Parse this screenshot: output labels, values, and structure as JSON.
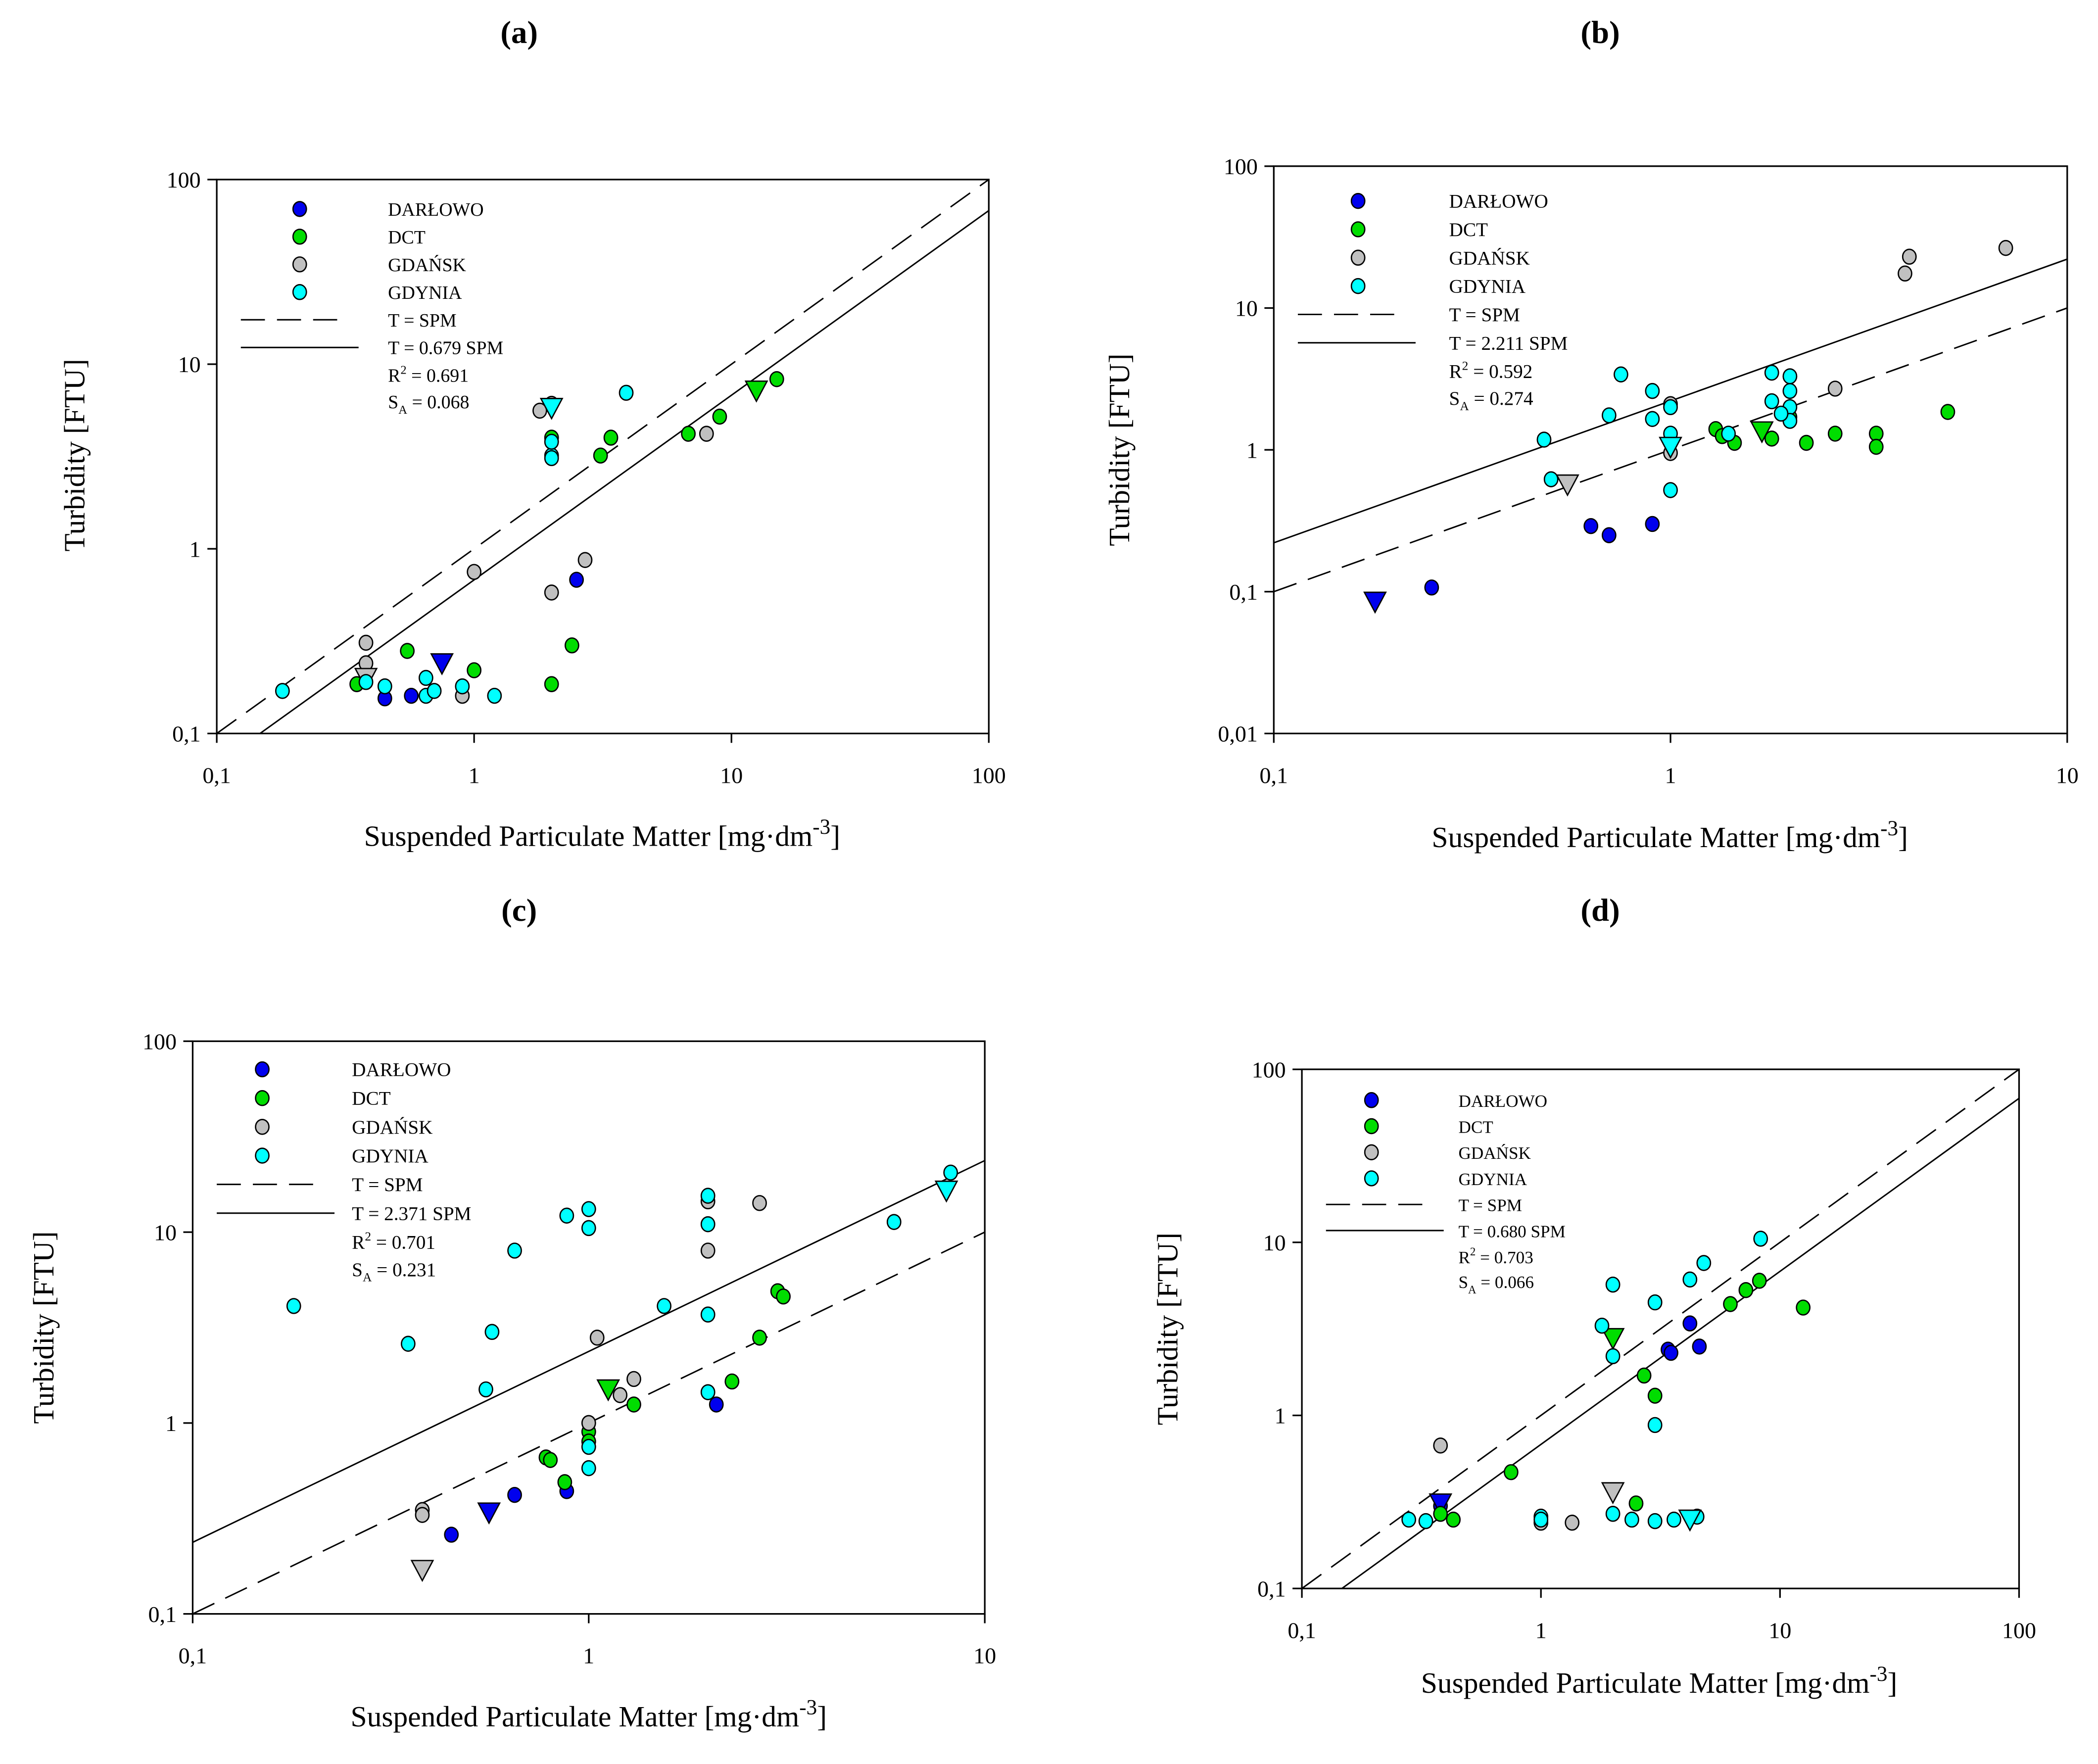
{
  "series_styles": [
    {
      "name": "DARŁOWO",
      "color": "#0000ee"
    },
    {
      "name": "DCT",
      "color": "#00dd00"
    },
    {
      "name": "GDAŃSK",
      "color": "#c0c0c0"
    },
    {
      "name": "GDYNIA",
      "color": "#00ffff"
    }
  ],
  "chart_data": [
    {
      "panel": "(a)",
      "type": "scatter",
      "xlabel": "Suspended Particulate Matter [mg·dm",
      "xlabel_sup": "-3",
      "xlabel_end": "]",
      "ylabel": "Turbidity [FTU]",
      "xscale": "log",
      "yscale": "log",
      "xlim": [
        0.1,
        100
      ],
      "ylim": [
        0.1,
        100
      ],
      "xticks": [
        "0,1",
        "1",
        "10",
        "100"
      ],
      "yticks": [
        "0,1",
        "1",
        "10",
        "100"
      ],
      "legend_position": "top-left",
      "lines": [
        {
          "label": "T = SPM",
          "slope": 1,
          "style": "dashed"
        },
        {
          "label": "T = 0.679 SPM",
          "slope": 0.679,
          "style": "solid"
        }
      ],
      "r2_label": "R",
      "r2_sup": "2",
      "r2_value": " = 0.691",
      "sa_label": "S",
      "sa_sub": "A",
      "sa_value": " = 0.068",
      "series": [
        {
          "name": "DARŁOWO",
          "points": [
            [
              0.45,
              0.155
            ],
            [
              0.57,
              0.16
            ],
            [
              2.5,
              0.68
            ]
          ],
          "mean": [
            0.75,
            0.24
          ]
        },
        {
          "name": "DCT",
          "points": [
            [
              0.35,
              0.185
            ],
            [
              0.55,
              0.28
            ],
            [
              1,
              0.22
            ],
            [
              2,
              0.185
            ],
            [
              2.4,
              0.3
            ],
            [
              3.1,
              3.2
            ],
            [
              3.4,
              4.0
            ],
            [
              6.8,
              4.2
            ],
            [
              9,
              5.2
            ],
            [
              15,
              8.3
            ],
            [
              2,
              4.0
            ]
          ],
          "mean": [
            12.5,
            7.2
          ]
        },
        {
          "name": "GDAŃSK",
          "points": [
            [
              0.38,
              0.31
            ],
            [
              0.38,
              0.24
            ],
            [
              0.9,
              0.16
            ],
            [
              1,
              0.75
            ],
            [
              1.8,
              5.6
            ],
            [
              2,
              6.1
            ],
            [
              2,
              0.58
            ],
            [
              2.7,
              0.87
            ],
            [
              8,
              4.2
            ]
          ],
          "mean": [
            0.38,
            0.2
          ]
        },
        {
          "name": "GDYNIA",
          "points": [
            [
              0.18,
              0.17
            ],
            [
              0.45,
              0.18
            ],
            [
              0.65,
              0.2
            ],
            [
              0.65,
              0.16
            ],
            [
              0.7,
              0.17
            ],
            [
              0.9,
              0.18
            ],
            [
              1.2,
              0.16
            ],
            [
              2,
              3.2
            ],
            [
              2,
              3.8
            ],
            [
              2,
              3.1
            ],
            [
              3.9,
              7.0
            ],
            [
              0.38,
              0.19
            ]
          ],
          "mean": [
            2,
            5.8
          ]
        }
      ]
    },
    {
      "panel": "(b)",
      "type": "scatter",
      "xlabel": "Suspended Particulate Matter [mg·dm",
      "xlabel_sup": "-3",
      "xlabel_end": "]",
      "ylabel": "Turbidity [FTU]",
      "xscale": "log",
      "yscale": "log",
      "xlim": [
        0.1,
        10
      ],
      "ylim": [
        0.01,
        100
      ],
      "xticks": [
        "0,1",
        "1",
        "10"
      ],
      "yticks": [
        "0,01",
        "0,1",
        "1",
        "10",
        "100"
      ],
      "legend_position": "top-left",
      "lines": [
        {
          "label": "T =  SPM",
          "slope": 1,
          "style": "dashed"
        },
        {
          "label": "T = 2.211 SPM",
          "slope": 2.211,
          "style": "solid"
        }
      ],
      "r2_label": "R",
      "r2_sup": "2",
      "r2_value": " = 0.592",
      "sa_label": "S",
      "sa_sub": "A",
      "sa_value": " = 0.274",
      "series": [
        {
          "name": "DARŁOWO",
          "points": [
            [
              0.25,
              0.107
            ],
            [
              0.63,
              0.29
            ],
            [
              0.7,
              0.25
            ],
            [
              0.9,
              0.3
            ]
          ],
          "mean": [
            0.18,
            0.085
          ]
        },
        {
          "name": "DCT",
          "points": [
            [
              1.3,
              1.4
            ],
            [
              1.35,
              1.25
            ],
            [
              1.45,
              1.12
            ],
            [
              1.8,
              1.2
            ],
            [
              2.2,
              1.12
            ],
            [
              2.6,
              1.3
            ],
            [
              3.3,
              1.3
            ],
            [
              3.3,
              1.05
            ],
            [
              5,
              1.85
            ],
            [
              2,
              1.7
            ]
          ],
          "mean": [
            1.7,
            1.35
          ]
        },
        {
          "name": "GDAŃSK",
          "points": [
            [
              1,
              0.95
            ],
            [
              1,
              2.1
            ],
            [
              2.6,
              2.7
            ],
            [
              3.9,
              17.5
            ],
            [
              4,
              23
            ],
            [
              7,
              26.5
            ]
          ],
          "mean": [
            0.55,
            0.57
          ]
        },
        {
          "name": "GDYNIA",
          "points": [
            [
              0.48,
              1.18
            ],
            [
              0.5,
              0.62
            ],
            [
              0.7,
              1.75
            ],
            [
              0.75,
              3.4
            ],
            [
              0.9,
              2.6
            ],
            [
              0.9,
              1.65
            ],
            [
              1,
              2.0
            ],
            [
              1,
              1.3
            ],
            [
              1,
              0.52
            ],
            [
              1.8,
              3.5
            ],
            [
              1.8,
              2.2
            ],
            [
              2,
              3.3
            ],
            [
              2,
              2.6
            ],
            [
              2,
              2.0
            ],
            [
              2,
              1.6
            ],
            [
              1.9,
              1.8
            ],
            [
              1.4,
              1.3
            ]
          ],
          "mean": [
            1,
            1.05
          ]
        }
      ]
    },
    {
      "panel": "(c)",
      "type": "scatter",
      "xlabel": "Suspended Particulate Matter [mg·dm",
      "xlabel_sup": "-3",
      "xlabel_end": "]",
      "ylabel": "Turbidity [FTU]",
      "xscale": "log",
      "yscale": "log",
      "xlim": [
        0.1,
        10
      ],
      "ylim": [
        0.1,
        100
      ],
      "xticks": [
        "0,1",
        "1",
        "10"
      ],
      "yticks": [
        "0,1",
        "1",
        "10",
        "100"
      ],
      "legend_position": "top-left",
      "lines": [
        {
          "label": "T = SPM",
          "slope": 1,
          "style": "dashed"
        },
        {
          "label": "T = 2.371 SPM",
          "slope": 2.371,
          "style": "solid"
        }
      ],
      "r2_label": "R",
      "r2_sup": "2",
      "r2_value": " = 0.701",
      "sa_label": "S",
      "sa_sub": "A",
      "sa_value": " = 0.231",
      "series": [
        {
          "name": "DARŁOWO",
          "points": [
            [
              0.45,
              0.26
            ],
            [
              0.65,
              0.42
            ],
            [
              0.88,
              0.44
            ],
            [
              2.1,
              1.25
            ]
          ],
          "mean": [
            0.56,
            0.34
          ]
        },
        {
          "name": "DCT",
          "points": [
            [
              0.78,
              0.66
            ],
            [
              0.8,
              0.64
            ],
            [
              0.87,
              0.49
            ],
            [
              1,
              0.9
            ],
            [
              1,
              0.8
            ],
            [
              1.3,
              1.25
            ],
            [
              2.3,
              1.65
            ],
            [
              2.7,
              2.8
            ],
            [
              3,
              4.9
            ],
            [
              3.1,
              4.6
            ]
          ],
          "mean": [
            1.12,
            1.5
          ]
        },
        {
          "name": "GDAŃSK",
          "points": [
            [
              0.38,
              0.35
            ],
            [
              0.38,
              0.33
            ],
            [
              1,
              1.0
            ],
            [
              1.05,
              2.8
            ],
            [
              1.2,
              1.4
            ],
            [
              1.3,
              1.7
            ],
            [
              2,
              14.5
            ],
            [
              2,
              8
            ],
            [
              2.7,
              14.2
            ]
          ],
          "mean": [
            0.38,
            0.17
          ]
        },
        {
          "name": "GDYNIA",
          "points": [
            [
              0.18,
              4.1
            ],
            [
              0.35,
              2.6
            ],
            [
              0.55,
              1.5
            ],
            [
              0.57,
              3.0
            ],
            [
              0.65,
              8.0
            ],
            [
              0.88,
              12.2
            ],
            [
              1,
              13.2
            ],
            [
              1,
              10.5
            ],
            [
              1,
              0.75
            ],
            [
              1,
              0.58
            ],
            [
              1.55,
              4.1
            ],
            [
              2,
              15.5
            ],
            [
              2,
              11
            ],
            [
              2,
              3.7
            ],
            [
              2,
              1.45
            ],
            [
              5.9,
              11.3
            ],
            [
              8.2,
              20.5
            ]
          ],
          "mean": [
            8,
            16.5
          ]
        }
      ]
    },
    {
      "panel": "(d)",
      "type": "scatter",
      "xlabel": "Suspended Particulate Matter [mg·dm",
      "xlabel_sup": "-3",
      "xlabel_end": "]",
      "ylabel": "Turbidity [FTU]",
      "xscale": "log",
      "yscale": "log",
      "xlim": [
        0.1,
        100
      ],
      "ylim": [
        0.1,
        100
      ],
      "xticks": [
        "0,1",
        "1",
        "10",
        "100"
      ],
      "yticks": [
        "0,1",
        "1",
        "10",
        "100"
      ],
      "legend_position": "top-left",
      "lines": [
        {
          "label": "T = SPM",
          "slope": 1,
          "style": "dashed"
        },
        {
          "label": "T = 0.680 SPM",
          "slope": 0.68,
          "style": "solid"
        }
      ],
      "r2_label": "R",
      "r2_sup": "2",
      "r2_value": " = 0.703",
      "sa_label": "S",
      "sa_sub": "A",
      "sa_value": " = 0.066",
      "series": [
        {
          "name": "DARŁOWO",
          "points": [
            [
              0.38,
              0.3
            ],
            [
              3.4,
              2.4
            ],
            [
              3.5,
              2.3
            ],
            [
              4.2,
              3.4
            ],
            [
              4.6,
              2.5
            ]
          ],
          "mean": [
            0.38,
            0.31
          ]
        },
        {
          "name": "DCT",
          "points": [
            [
              0.38,
              0.27
            ],
            [
              0.43,
              0.25
            ],
            [
              0.75,
              0.47
            ],
            [
              2.5,
              0.31
            ],
            [
              2.7,
              1.7
            ],
            [
              3,
              1.3
            ],
            [
              6.2,
              4.4
            ],
            [
              7.2,
              5.3
            ],
            [
              8.2,
              6
            ],
            [
              12.5,
              4.2
            ]
          ],
          "mean": [
            2,
            2.8
          ]
        },
        {
          "name": "GDAŃSK",
          "points": [
            [
              0.38,
              0.67
            ],
            [
              1,
              0.24
            ],
            [
              1.35,
              0.24
            ]
          ],
          "mean": [
            2,
            0.36
          ]
        },
        {
          "name": "GDYNIA",
          "points": [
            [
              0.28,
              0.25
            ],
            [
              0.33,
              0.245
            ],
            [
              1,
              0.26
            ],
            [
              1,
              0.25
            ],
            [
              2,
              0.27
            ],
            [
              2.4,
              0.25
            ],
            [
              3,
              0.245
            ],
            [
              3.6,
              0.25
            ],
            [
              4.5,
              0.26
            ],
            [
              1.8,
              3.3
            ],
            [
              2,
              2.2
            ],
            [
              2,
              5.7
            ],
            [
              3,
              4.5
            ],
            [
              3,
              0.88
            ],
            [
              4.2,
              6.1
            ],
            [
              4.8,
              7.6
            ],
            [
              8.3,
              10.5
            ]
          ],
          "mean": [
            4.2,
            0.25
          ]
        }
      ]
    }
  ]
}
